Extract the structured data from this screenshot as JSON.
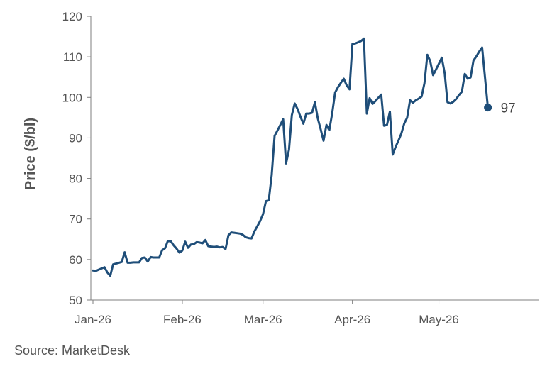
{
  "chart_data": {
    "type": "line",
    "ylabel": "Price ($/bl)",
    "xlabel": "",
    "ylim": [
      50,
      120
    ],
    "yticks": [
      50,
      60,
      70,
      80,
      90,
      100,
      110,
      120
    ],
    "xticks": [
      "Jan-26",
      "Feb-26",
      "Mar-26",
      "Apr-26",
      "May-26"
    ],
    "xtick_days": [
      0,
      31,
      59,
      90,
      120
    ],
    "grid": false,
    "series_color": "#1f4e79",
    "end_label": "97",
    "points": [
      [
        0,
        57.3
      ],
      [
        1,
        57.2
      ],
      [
        2,
        57.5
      ],
      [
        3,
        57.8
      ],
      [
        4,
        58.1
      ],
      [
        5,
        56.8
      ],
      [
        6,
        56.0
      ],
      [
        7,
        58.8
      ],
      [
        8,
        59.0
      ],
      [
        9,
        59.2
      ],
      [
        10,
        59.4
      ],
      [
        11,
        61.8
      ],
      [
        12,
        59.2
      ],
      [
        13,
        59.2
      ],
      [
        14,
        59.3
      ],
      [
        15,
        59.3
      ],
      [
        16,
        59.3
      ],
      [
        17,
        60.4
      ],
      [
        18,
        60.5
      ],
      [
        19,
        59.5
      ],
      [
        20,
        60.6
      ],
      [
        21,
        60.5
      ],
      [
        22,
        60.5
      ],
      [
        23,
        60.5
      ],
      [
        24,
        62.3
      ],
      [
        25,
        62.8
      ],
      [
        26,
        64.6
      ],
      [
        27,
        64.5
      ],
      [
        28,
        63.5
      ],
      [
        29,
        62.7
      ],
      [
        30,
        61.7
      ],
      [
        31,
        62.2
      ],
      [
        32,
        64.4
      ],
      [
        33,
        62.9
      ],
      [
        34,
        63.7
      ],
      [
        35,
        63.8
      ],
      [
        36,
        64.3
      ],
      [
        37,
        64.2
      ],
      [
        38,
        64.0
      ],
      [
        39,
        64.8
      ],
      [
        40,
        63.3
      ],
      [
        41,
        63.2
      ],
      [
        42,
        63.1
      ],
      [
        43,
        63.2
      ],
      [
        44,
        63.0
      ],
      [
        45,
        63.1
      ],
      [
        46,
        62.6
      ],
      [
        47,
        66.0
      ],
      [
        48,
        66.7
      ],
      [
        49,
        66.6
      ],
      [
        50,
        66.5
      ],
      [
        51,
        66.4
      ],
      [
        52,
        66.1
      ],
      [
        53,
        65.5
      ],
      [
        54,
        65.3
      ],
      [
        55,
        65.2
      ],
      [
        56,
        66.9
      ],
      [
        57,
        68.2
      ],
      [
        58,
        69.5
      ],
      [
        59,
        71.2
      ],
      [
        60,
        74.4
      ],
      [
        61,
        74.6
      ],
      [
        62,
        80.8
      ],
      [
        63,
        90.5
      ],
      [
        64,
        91.8
      ],
      [
        65,
        93.2
      ],
      [
        66,
        94.6
      ],
      [
        67,
        83.7
      ],
      [
        68,
        87.1
      ],
      [
        69,
        95.6
      ],
      [
        70,
        98.5
      ],
      [
        71,
        97.1
      ],
      [
        72,
        95.2
      ],
      [
        73,
        93.5
      ],
      [
        74,
        96.0
      ],
      [
        75,
        96.0
      ],
      [
        76,
        96.2
      ],
      [
        77,
        98.8
      ],
      [
        78,
        94.8
      ],
      [
        79,
        92.1
      ],
      [
        80,
        89.3
      ],
      [
        81,
        93.2
      ],
      [
        82,
        91.9
      ],
      [
        83,
        96.1
      ],
      [
        84,
        101.2
      ],
      [
        85,
        102.5
      ],
      [
        86,
        103.6
      ],
      [
        87,
        104.6
      ],
      [
        88,
        103.0
      ],
      [
        89,
        102.0
      ],
      [
        90,
        113.2
      ],
      [
        91,
        113.3
      ],
      [
        92,
        113.6
      ],
      [
        93,
        113.9
      ],
      [
        94,
        114.5
      ],
      [
        95,
        96.0
      ],
      [
        96,
        99.8
      ],
      [
        97,
        98.4
      ],
      [
        98,
        99.1
      ],
      [
        99,
        99.9
      ],
      [
        100,
        100.7
      ],
      [
        101,
        93.0
      ],
      [
        102,
        93.2
      ],
      [
        103,
        96.5
      ],
      [
        104,
        85.9
      ],
      [
        105,
        87.8
      ],
      [
        106,
        89.4
      ],
      [
        107,
        91.1
      ],
      [
        108,
        93.6
      ],
      [
        109,
        95.0
      ],
      [
        110,
        99.3
      ],
      [
        111,
        98.7
      ],
      [
        112,
        99.3
      ],
      [
        113,
        99.7
      ],
      [
        114,
        100.2
      ],
      [
        115,
        103.5
      ],
      [
        116,
        110.5
      ],
      [
        117,
        109.0
      ],
      [
        118,
        105.5
      ],
      [
        119,
        106.9
      ],
      [
        120,
        108.3
      ],
      [
        121,
        109.8
      ],
      [
        122,
        106.0
      ],
      [
        123,
        98.8
      ],
      [
        124,
        98.5
      ],
      [
        125,
        98.9
      ],
      [
        126,
        99.6
      ],
      [
        127,
        100.6
      ],
      [
        128,
        101.4
      ],
      [
        129,
        105.8
      ],
      [
        130,
        104.6
      ],
      [
        131,
        104.9
      ],
      [
        132,
        109.1
      ],
      [
        133,
        110.1
      ],
      [
        134,
        111.3
      ],
      [
        135,
        112.3
      ],
      [
        136,
        105.0
      ],
      [
        137,
        97.5
      ]
    ]
  },
  "footer": {
    "source": "Source: MarketDesk"
  }
}
